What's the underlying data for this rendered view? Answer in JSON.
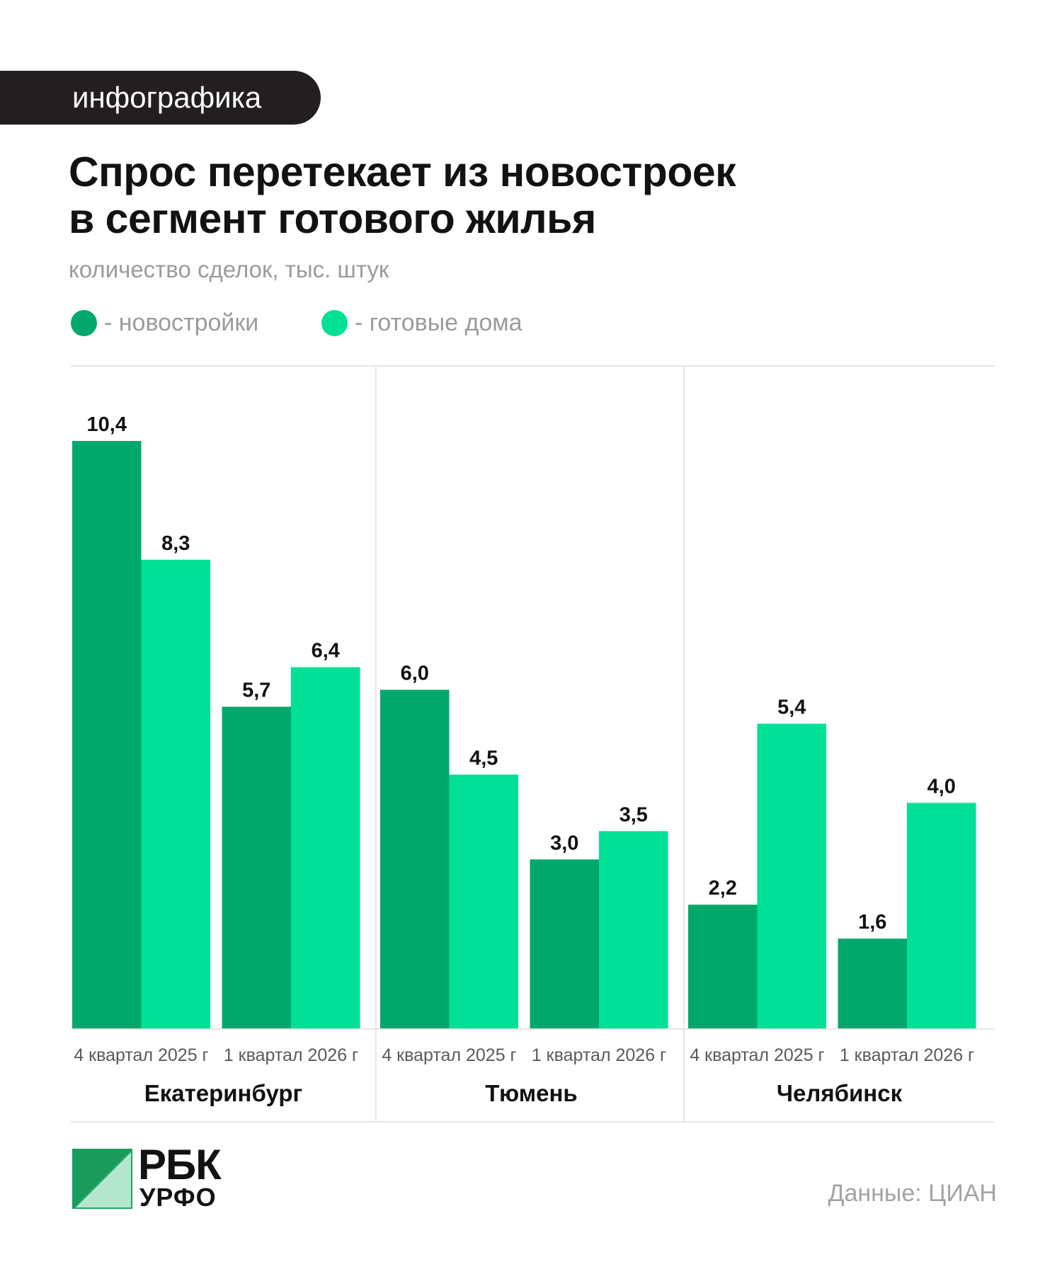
{
  "header": {
    "tag": "инфографика",
    "title_line1": "Спрос перетекает из новостроек",
    "title_line2": "в сегмент готового жилья",
    "subtitle": "количество сделок, тыс. штук"
  },
  "legend": {
    "items": [
      {
        "label": "- новостройки",
        "color": "#00a86b"
      },
      {
        "label": "- готовые дома",
        "color": "#00e096"
      }
    ]
  },
  "chart_data": {
    "type": "bar",
    "grouped": true,
    "ylim": [
      0,
      10.4
    ],
    "series": [
      {
        "name": "новостройки",
        "color": "#00a86b"
      },
      {
        "name": "готовые дома",
        "color": "#00e096"
      }
    ],
    "groups": [
      {
        "city": "Екатеринбург",
        "periods": [
          {
            "label": "4 квартал 2025 г",
            "values": [
              10.4,
              8.3
            ],
            "value_labels": [
              "10,4",
              "8,3"
            ]
          },
          {
            "label": "1 квартал 2026 г",
            "values": [
              5.7,
              6.4
            ],
            "value_labels": [
              "5,7",
              "6,4"
            ]
          }
        ]
      },
      {
        "city": "Тюмень",
        "periods": [
          {
            "label": "4 квартал 2025 г",
            "values": [
              6.0,
              4.5
            ],
            "value_labels": [
              "6,0",
              "4,5"
            ]
          },
          {
            "label": "1 квартал 2026 г",
            "values": [
              3.0,
              3.5
            ],
            "value_labels": [
              "3,0",
              "3,5"
            ]
          }
        ]
      },
      {
        "city": "Челябинск",
        "periods": [
          {
            "label": "4 квартал 2025 г",
            "values": [
              2.2,
              5.4
            ],
            "value_labels": [
              "2,2",
              "5,4"
            ]
          },
          {
            "label": "1 квартал 2026 г",
            "values": [
              1.6,
              4.0
            ],
            "value_labels": [
              "1,6",
              "4,0"
            ]
          }
        ]
      }
    ],
    "grid": false,
    "legend_position": "top-left"
  },
  "footer": {
    "logo_line1": "РБК",
    "logo_line2": "УРФО",
    "source": "Данные: ЦИАН"
  }
}
